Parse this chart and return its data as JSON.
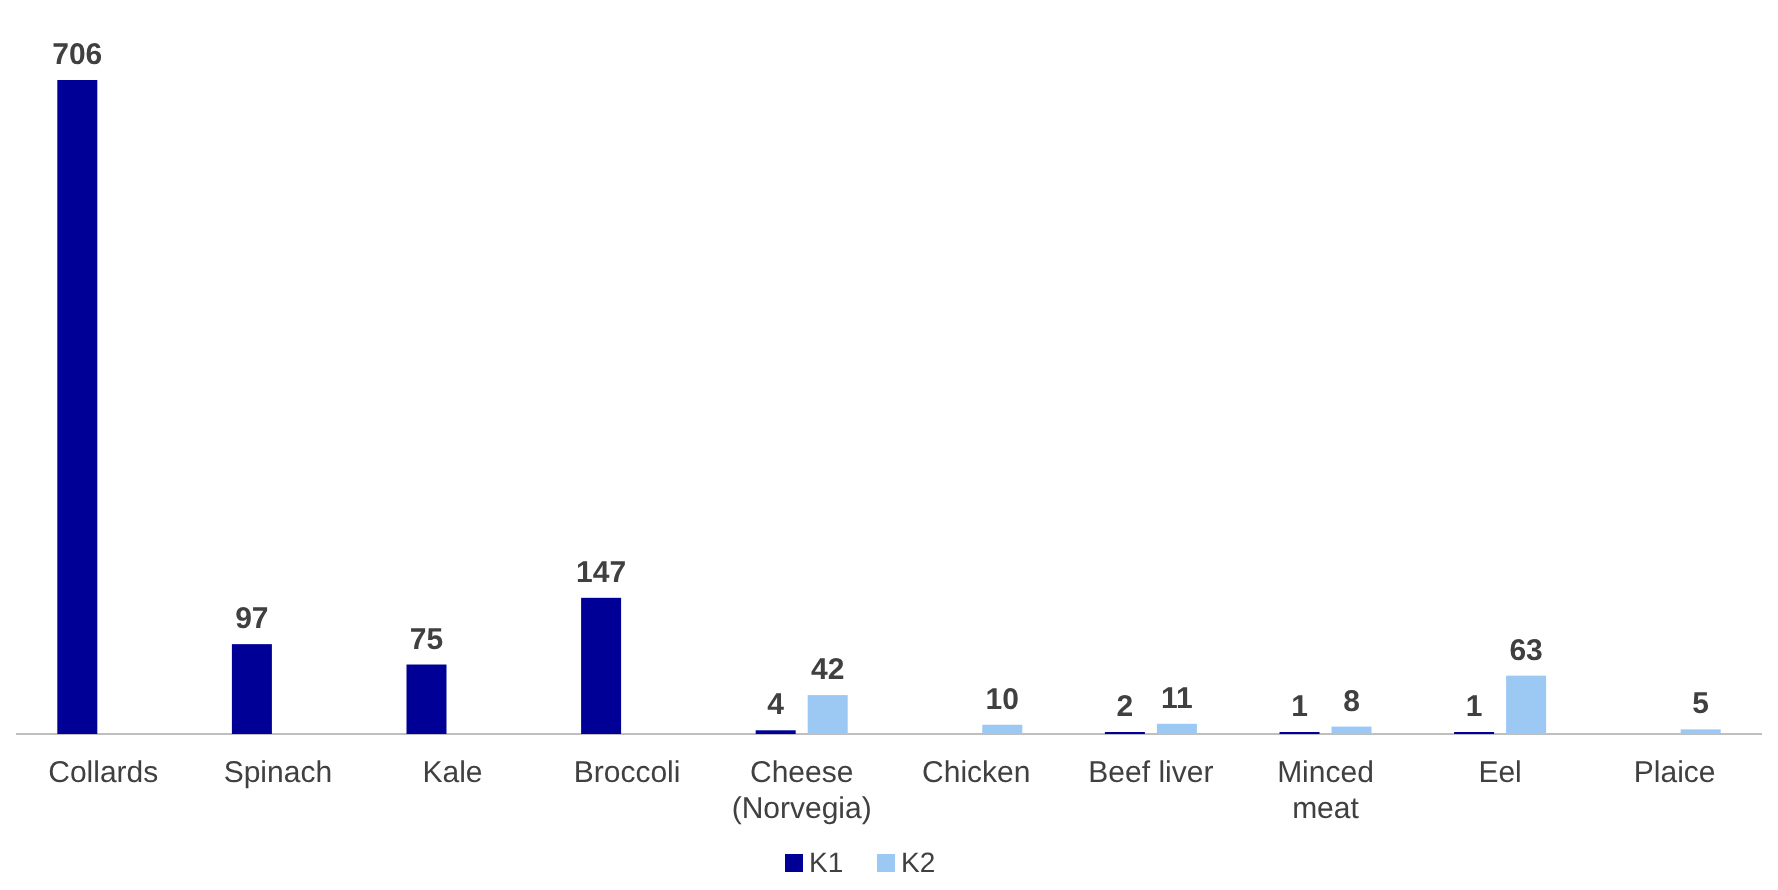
{
  "chart_data": {
    "type": "bar",
    "categories": [
      "Collards",
      "Spinach",
      "Kale",
      "Broccoli",
      "Cheese\n(Norvegia)",
      "Chicken",
      "Beef liver",
      "Minced\nmeat",
      "Eel",
      "Plaice"
    ],
    "series": [
      {
        "name": "K1",
        "color": "#000096",
        "values": [
          706,
          97,
          75,
          147,
          4,
          null,
          2,
          1,
          1,
          null
        ]
      },
      {
        "name": "K2",
        "color": "#9cc8f4",
        "values": [
          null,
          null,
          null,
          null,
          42,
          10,
          11,
          8,
          63,
          5
        ]
      }
    ],
    "data_labels": true,
    "legend": "bottom"
  }
}
